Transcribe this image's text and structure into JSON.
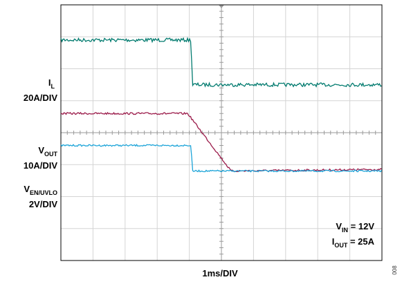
{
  "chart_data": {
    "type": "line",
    "title": "",
    "xlabel": "1ms/DIV",
    "ylabel": "",
    "grid": true,
    "x_divisions": 10,
    "y_divisions": 8,
    "xlim": [
      0,
      10
    ],
    "ylim": [
      0,
      8
    ],
    "x_units": "div",
    "y_units": "div",
    "series": [
      {
        "name": "I",
        "subscript": "L",
        "scale": "20A/DIV",
        "color": "#007a6e",
        "x": [
          0,
          4.05,
          4.1,
          10
        ],
        "y": [
          6.9,
          6.9,
          5.5,
          5.5
        ]
      },
      {
        "name": "V",
        "subscript": "OUT",
        "scale": "10A/DIV",
        "color": "#9b1b4a",
        "x": [
          0,
          3.95,
          5.3,
          10
        ],
        "y": [
          4.6,
          4.6,
          2.8,
          2.85
        ]
      },
      {
        "name": "V",
        "subscript": "EN/UVLO",
        "scale": "2V/DIV",
        "color": "#1aa3d8",
        "x": [
          0,
          4.05,
          4.1,
          10
        ],
        "y": [
          3.6,
          3.6,
          2.8,
          2.8
        ]
      }
    ],
    "annotations": [
      {
        "name": "V",
        "subscript": "IN",
        "text": " = 12V"
      },
      {
        "name": "I",
        "subscript": "OUT",
        "text": " = 25A"
      }
    ],
    "figure_id": "008"
  }
}
